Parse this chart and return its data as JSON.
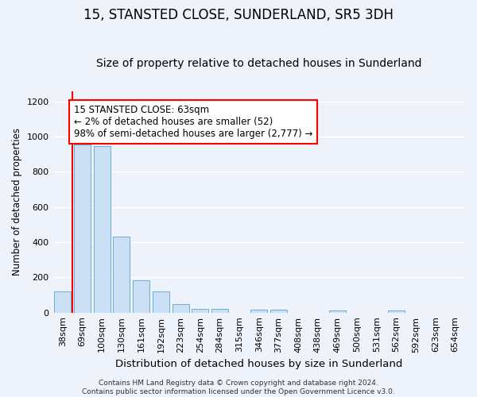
{
  "title": "15, STANSTED CLOSE, SUNDERLAND, SR5 3DH",
  "subtitle": "Size of property relative to detached houses in Sunderland",
  "xlabel": "Distribution of detached houses by size in Sunderland",
  "ylabel": "Number of detached properties",
  "categories": [
    "38sqm",
    "69sqm",
    "100sqm",
    "130sqm",
    "161sqm",
    "192sqm",
    "223sqm",
    "254sqm",
    "284sqm",
    "315sqm",
    "346sqm",
    "377sqm",
    "408sqm",
    "438sqm",
    "469sqm",
    "500sqm",
    "531sqm",
    "562sqm",
    "592sqm",
    "623sqm",
    "654sqm"
  ],
  "values": [
    120,
    955,
    945,
    430,
    185,
    120,
    48,
    22,
    22,
    0,
    18,
    18,
    0,
    0,
    10,
    0,
    0,
    10,
    0,
    0,
    0
  ],
  "bar_color": "#cce0f5",
  "bar_edge_color": "#6aaed6",
  "annotation_line1": "15 STANSTED CLOSE: 63sqm",
  "annotation_line2": "← 2% of detached houses are smaller (52)",
  "annotation_line3": "98% of semi-detached houses are larger (2,777) →",
  "annotation_box_color": "white",
  "annotation_box_edge_color": "red",
  "vline_color": "red",
  "vline_x": 0.5,
  "ylim": [
    0,
    1260
  ],
  "yticks": [
    0,
    200,
    400,
    600,
    800,
    1000,
    1200
  ],
  "background_color": "#eef2fa",
  "grid_color": "white",
  "footer": "Contains HM Land Registry data © Crown copyright and database right 2024.\nContains public sector information licensed under the Open Government Licence v3.0.",
  "title_fontsize": 12,
  "subtitle_fontsize": 10,
  "xlabel_fontsize": 9.5,
  "ylabel_fontsize": 8.5,
  "tick_fontsize": 8,
  "annotation_fontsize": 8.5,
  "footer_fontsize": 6.5
}
